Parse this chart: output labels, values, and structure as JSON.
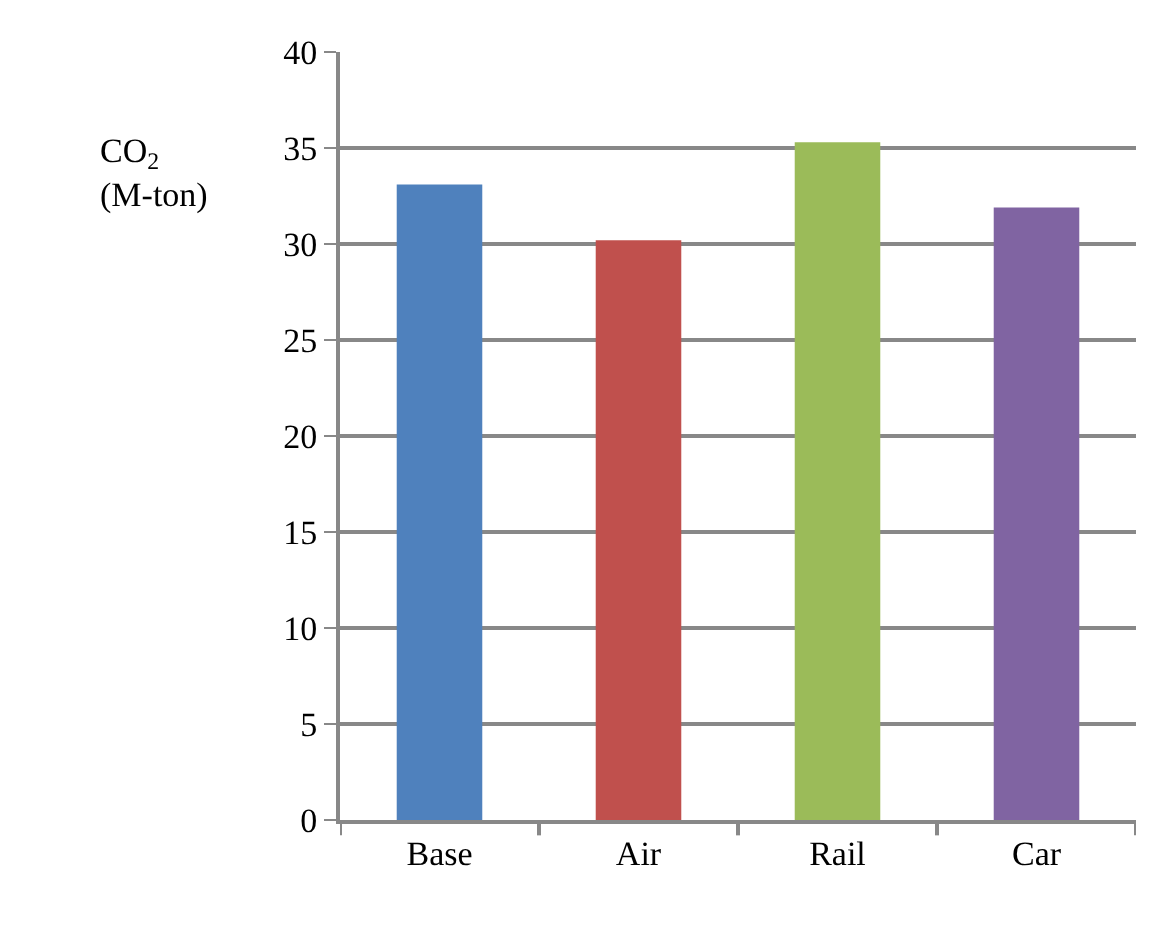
{
  "chart_data": {
    "type": "bar",
    "ylabel": "CO$_{2}$\n(M-ton)",
    "categories": [
      "Base",
      "Air",
      "Rail",
      "Car"
    ],
    "values": [
      33.1,
      30.2,
      35.3,
      31.9
    ],
    "colors": [
      "#4f81bd",
      "#c0504d",
      "#9bbb59",
      "#8064a2"
    ],
    "ylim": [
      0,
      40
    ],
    "yticks": [
      0,
      5,
      10,
      15,
      20,
      25,
      30,
      35,
      40
    ],
    "grid": "y"
  }
}
